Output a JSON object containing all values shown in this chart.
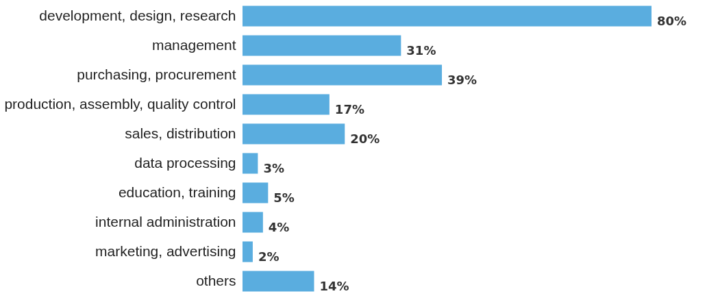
{
  "chart_data": {
    "type": "bar",
    "orientation": "horizontal",
    "categories": [
      "development, design, research",
      "management",
      "purchasing, procurement",
      "production, assembly, quality control",
      "sales, distribution",
      "data processing",
      "education, training",
      "internal administration",
      "marketing, advertising",
      "others"
    ],
    "values": [
      80,
      31,
      39,
      17,
      20,
      3,
      5,
      4,
      2,
      14
    ],
    "value_labels": [
      "80%",
      "31%",
      "39%",
      "17%",
      "20%",
      "3%",
      "5%",
      "4%",
      "2%",
      "14%"
    ],
    "color": "#5aaddf"
  }
}
